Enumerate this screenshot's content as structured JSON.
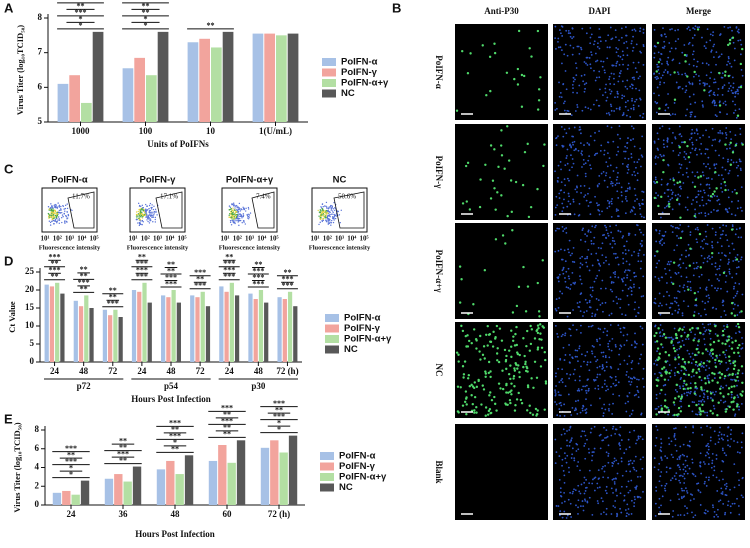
{
  "panel_labels": [
    "A",
    "B",
    "C",
    "D",
    "E"
  ],
  "chart_data": [
    {
      "type": "bar",
      "xlabel": "Units of PoIFNs",
      "ylabel": "Virus Titer (log₁₀TCID₅₀)",
      "categories": [
        "1000",
        "100",
        "10",
        "1(U/mL)"
      ],
      "series": [
        {
          "name": "PoIFN-α",
          "color": "#a7c1e6",
          "values": [
            6.1,
            6.55,
            7.3,
            7.55
          ]
        },
        {
          "name": "PoIFN-γ",
          "color": "#f2a49d",
          "values": [
            6.35,
            6.85,
            7.4,
            7.55
          ]
        },
        {
          "name": "PoIFN-α+γ",
          "color": "#b3dfa3",
          "values": [
            5.55,
            6.35,
            7.15,
            7.5
          ]
        },
        {
          "name": "NC",
          "color": "#585858",
          "values": [
            7.6,
            7.6,
            7.6,
            7.55
          ]
        }
      ],
      "ylim": [
        5,
        8
      ],
      "yticks": [
        5,
        6,
        7,
        8
      ],
      "legend": "right",
      "significance": [
        [
          "*",
          "*",
          "***",
          "**",
          "***"
        ],
        [
          "*",
          "*",
          "**",
          "**",
          "***"
        ],
        [
          "**"
        ],
        []
      ]
    },
    {
      "type": "bar",
      "xlabel": "Hours Post Infection",
      "ylabel": "Ct Value",
      "categories": [
        "24",
        "48",
        "72",
        "24",
        "48",
        "72",
        "24",
        "48",
        "72 (h)"
      ],
      "groups": [
        "p72",
        "p54",
        "p30"
      ],
      "series": [
        {
          "name": "PoIFN-α",
          "color": "#a7c1e6",
          "values": [
            21.5,
            17,
            14.5,
            20,
            18.5,
            18.5,
            21,
            19,
            18
          ]
        },
        {
          "name": "PoIFN-γ",
          "color": "#f2a49d",
          "values": [
            21,
            15.5,
            13,
            19.5,
            18,
            18,
            19.5,
            17.5,
            17.5
          ]
        },
        {
          "name": "PoIFN-α+γ",
          "color": "#b3dfa3",
          "values": [
            22,
            18.5,
            14.5,
            22,
            20,
            19.5,
            22,
            20,
            19.5
          ]
        },
        {
          "name": "NC",
          "color": "#585858",
          "values": [
            19,
            15,
            12.5,
            16.5,
            16.5,
            15.5,
            18.5,
            16.5,
            15.5
          ]
        }
      ],
      "ylim": [
        0,
        25
      ],
      "yticks": [
        0,
        5,
        10,
        15,
        20,
        25
      ],
      "legend": "right",
      "significance": [
        [
          "**",
          "***",
          "**",
          "***"
        ],
        [
          "**",
          "***",
          "**",
          "**"
        ],
        [
          "***",
          "**",
          "**"
        ],
        [
          "***",
          "***",
          "***",
          "**"
        ],
        [
          "***",
          "***",
          "**",
          "**"
        ],
        [
          "***",
          "**",
          "***"
        ],
        [
          "***",
          "***",
          "***",
          "**"
        ],
        [
          "***",
          "***",
          "***",
          "**"
        ],
        [
          "***",
          "***",
          "**"
        ]
      ]
    },
    {
      "type": "bar",
      "xlabel": "Hours Post Infection",
      "ylabel": "Virus Titer (log₁₀TCID₅₀)",
      "categories": [
        "24",
        "36",
        "48",
        "60",
        "72 (h)"
      ],
      "series": [
        {
          "name": "PoIFN-α",
          "color": "#a7c1e6",
          "values": [
            1.3,
            2.8,
            3.8,
            4.7,
            6.1
          ]
        },
        {
          "name": "PoIFN-γ",
          "color": "#f2a49d",
          "values": [
            1.5,
            3.3,
            4.7,
            6.4,
            6.9
          ]
        },
        {
          "name": "PoIFN-α+γ",
          "color": "#b3dfa3",
          "values": [
            1.1,
            2.5,
            3.3,
            4.5,
            5.6
          ]
        },
        {
          "name": "NC",
          "color": "#585858",
          "values": [
            2.6,
            4.1,
            5.3,
            6.9,
            7.4
          ]
        }
      ],
      "ylim": [
        0,
        8
      ],
      "yticks": [
        0,
        2,
        4,
        6,
        8
      ],
      "legend": "right",
      "significance": [
        [
          "*",
          "*",
          "***",
          "**",
          "***"
        ],
        [
          "**",
          "***",
          "**",
          "**"
        ],
        [
          "**",
          "*",
          "***",
          "**",
          "***"
        ],
        [
          "**",
          "**",
          "***",
          "**",
          "***"
        ],
        [
          "*",
          "*",
          "***",
          "**",
          "***"
        ]
      ]
    }
  ],
  "panel_b": {
    "columns": [
      "Anti-P30",
      "DAPI",
      "Merge"
    ],
    "rows": [
      "PoIFN-α",
      "PoIFN-γ",
      "PoIFN-α+γ",
      "NC",
      "Blank"
    ]
  },
  "panel_c": {
    "titles": [
      "PoIFN-α",
      "PoIFN-γ",
      "PoIFN-α+γ",
      "NC"
    ],
    "gates": [
      "11.7%",
      "17.1%",
      "7.4%",
      "50.6%"
    ],
    "xticks": [
      "10¹",
      "10²",
      "10³",
      "10⁴",
      "10⁵"
    ],
    "xlabel": "Fluorescence intensity"
  }
}
